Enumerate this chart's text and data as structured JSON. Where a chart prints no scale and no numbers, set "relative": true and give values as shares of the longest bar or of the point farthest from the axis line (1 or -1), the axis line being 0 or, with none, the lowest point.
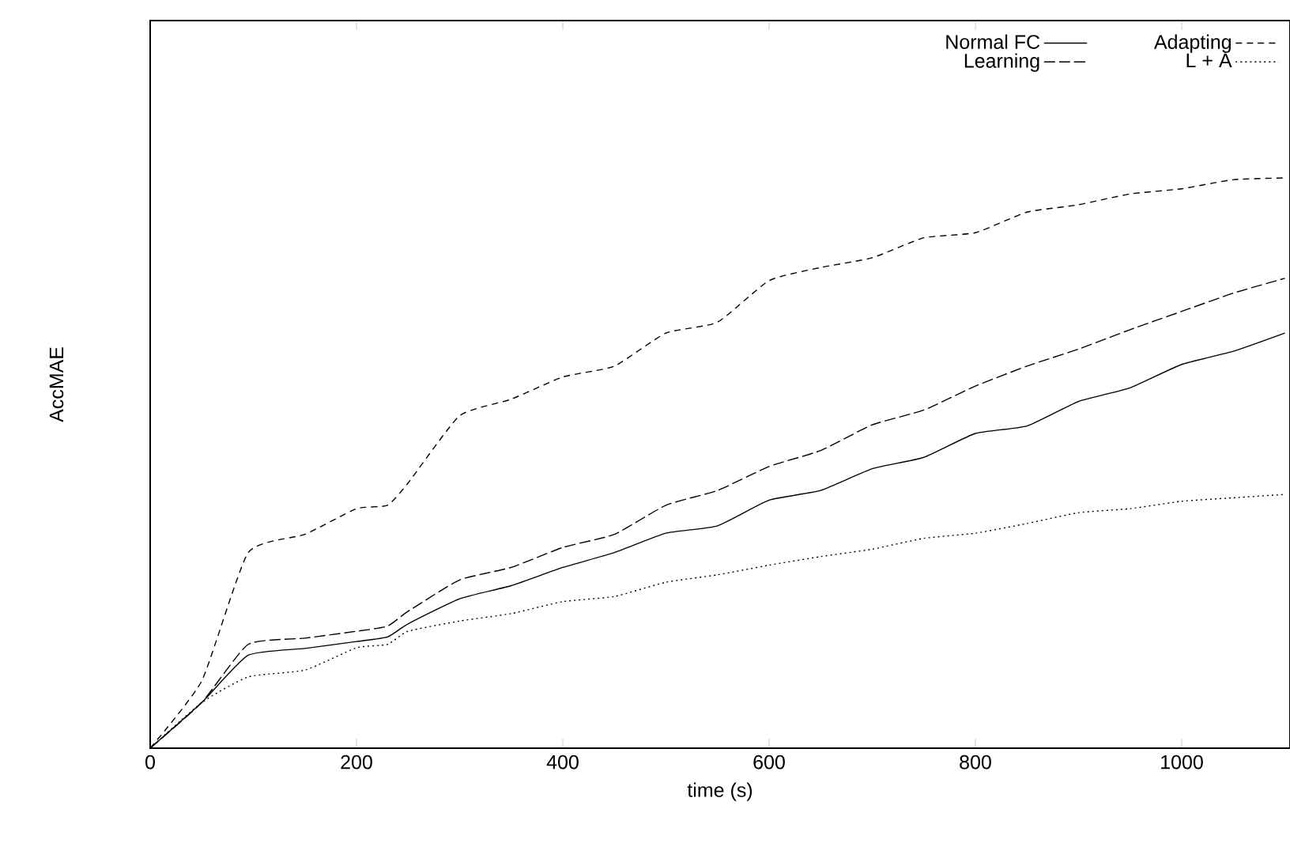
{
  "chart_data": {
    "type": "line",
    "relative": true,
    "xlabel": "time (s)",
    "ylabel": "AccMAE",
    "xlim": [
      0,
      1105
    ],
    "xticks": [
      0,
      200,
      400,
      600,
      800,
      1000
    ],
    "legend": "top right",
    "grid": false,
    "marker": "none",
    "x": [
      0,
      50,
      95,
      150,
      200,
      230,
      250,
      300,
      350,
      400,
      450,
      500,
      550,
      600,
      650,
      700,
      750,
      800,
      850,
      900,
      950,
      1000,
      1050,
      1100
    ],
    "series": [
      {
        "name": "Normal FC",
        "color": "#000000",
        "line_style": "solid",
        "values": [
          0,
          0.08,
          0.163,
          0.175,
          0.187,
          0.195,
          0.218,
          0.262,
          0.285,
          0.317,
          0.343,
          0.377,
          0.39,
          0.435,
          0.452,
          0.49,
          0.51,
          0.552,
          0.565,
          0.608,
          0.632,
          0.673,
          0.696,
          0.728
        ]
      },
      {
        "name": "Adapting",
        "color": "#000000",
        "line_style": "dashed",
        "values": [
          0,
          0.118,
          0.343,
          0.375,
          0.42,
          0.426,
          0.465,
          0.583,
          0.612,
          0.651,
          0.67,
          0.728,
          0.747,
          0.82,
          0.843,
          0.86,
          0.895,
          0.904,
          0.94,
          0.953,
          0.972,
          0.981,
          0.997,
          1
        ]
      },
      {
        "name": "Learning",
        "color": "#000000",
        "line_style": "dashed",
        "values": [
          0,
          0.08,
          0.182,
          0.193,
          0.205,
          0.214,
          0.24,
          0.295,
          0.317,
          0.352,
          0.375,
          0.426,
          0.452,
          0.494,
          0.522,
          0.567,
          0.593,
          0.635,
          0.67,
          0.7,
          0.734,
          0.766,
          0.798,
          0.824
        ]
      },
      {
        "name": "L + A",
        "color": "#000000",
        "line_style": "dotted",
        "values": [
          0,
          0.08,
          0.125,
          0.137,
          0.176,
          0.182,
          0.205,
          0.223,
          0.236,
          0.257,
          0.266,
          0.291,
          0.304,
          0.321,
          0.336,
          0.349,
          0.368,
          0.377,
          0.394,
          0.413,
          0.42,
          0.433,
          0.439,
          0.445
        ]
      }
    ]
  }
}
